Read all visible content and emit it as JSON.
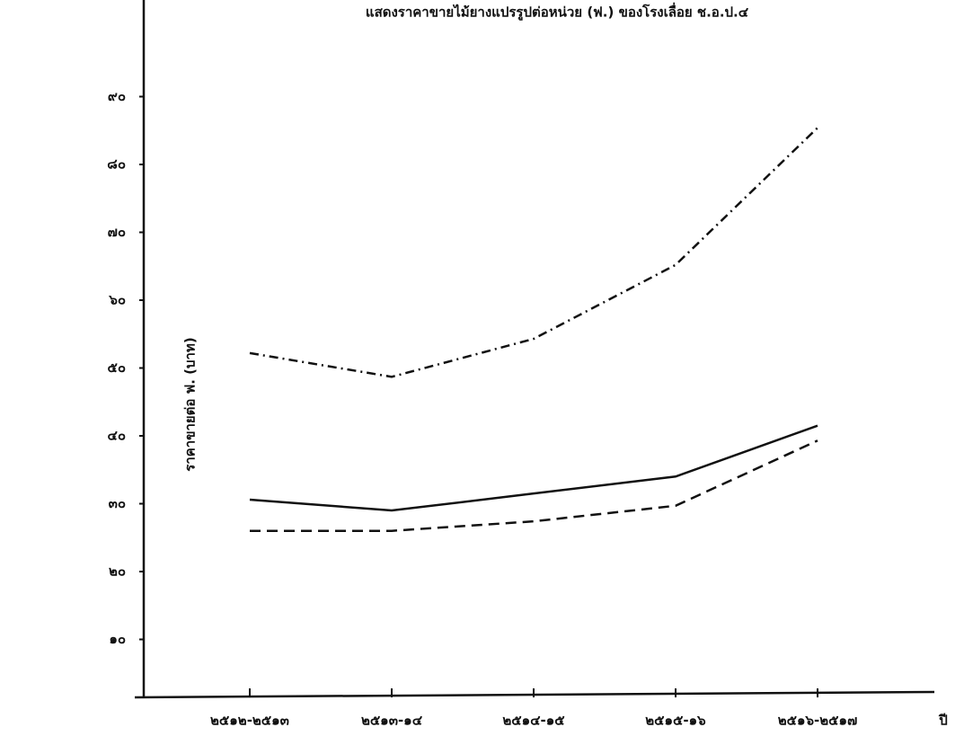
{
  "chart_data": {
    "type": "line",
    "title": "แสดงราคาขายไม้ยางแปรรูปต่อหน่วย (ฟ.) ของโรงเลื่อย ช.อ.ป.๔",
    "y_label": "ราคาขายต่อ ฟ. (บาท)",
    "x_label": "ปี",
    "categories": [
      "๒๕๑๒-๒๕๑๓",
      "๒๕๑๓-๑๔",
      "๒๕๑๔-๑๕",
      "๒๕๑๕-๑๖",
      "๒๕๑๖-๒๕๑๗"
    ],
    "series": [
      {
        "color": "#111111",
        "dash": "dashdot",
        "values": [
          52.2,
          48.7,
          54.3,
          65.2,
          85.4
        ]
      },
      {
        "color": "#111111",
        "dash": "solid",
        "values": [
          30.6,
          29.0,
          31.5,
          34.0,
          41.5
        ]
      },
      {
        "color": "#111111",
        "dash": "dashed",
        "values": [
          26.0,
          26.0,
          27.4,
          29.7,
          39.3
        ]
      }
    ],
    "ylim": [
      0,
      100
    ],
    "yticks": [
      {
        "value": 10,
        "label": "๑๐"
      },
      {
        "value": 20,
        "label": "๒๐"
      },
      {
        "value": 30,
        "label": "๓๐"
      },
      {
        "value": 40,
        "label": "๔๐"
      },
      {
        "value": 50,
        "label": "๕๐"
      },
      {
        "value": 60,
        "label": "๖๐"
      },
      {
        "value": 70,
        "label": "๗๐"
      },
      {
        "value": 80,
        "label": "๘๐"
      },
      {
        "value": 90,
        "label": "๙๐"
      }
    ],
    "grid": false
  }
}
